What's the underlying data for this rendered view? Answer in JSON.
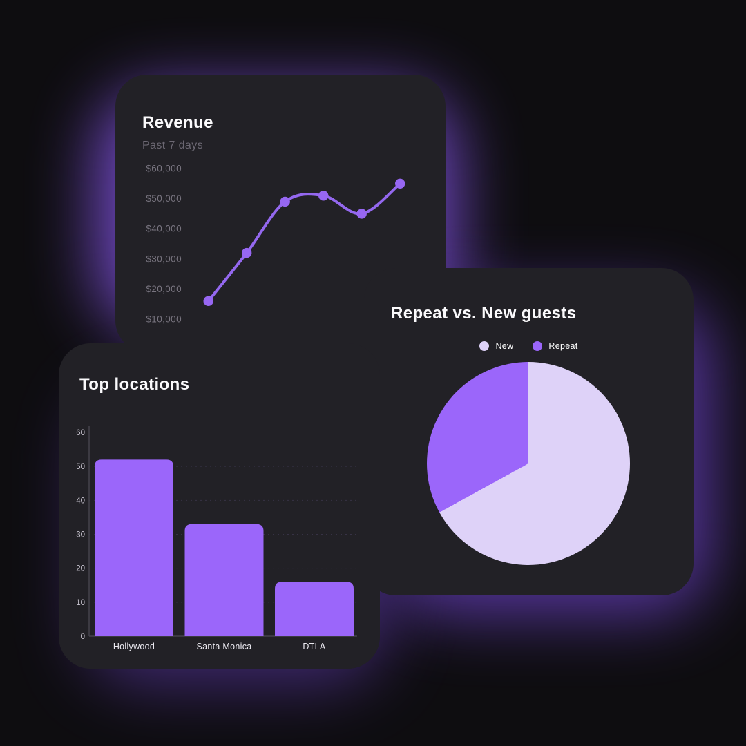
{
  "page": {
    "background": "#0e0d10",
    "card_background": "#222126",
    "glow_color": "#7b4fd6"
  },
  "chart_data": [
    {
      "id": "revenue-line",
      "type": "line",
      "title": "Revenue",
      "subtitle": "Past 7 days",
      "values": [
        16000,
        32000,
        49000,
        51000,
        45000,
        55000
      ],
      "y_ticks": [
        "$60,000",
        "$50,000",
        "$40,000",
        "$30,000",
        "$20,000",
        "$10,000"
      ],
      "ylim": [
        10000,
        60000
      ],
      "grid": false,
      "line_color": "#9468ef",
      "marker_color": "#9767f2"
    },
    {
      "id": "top-locations-bar",
      "type": "bar",
      "title": "Top locations",
      "categories": [
        "Hollywood",
        "Santa Monica",
        "DTLA"
      ],
      "values": [
        52,
        33,
        16
      ],
      "y_ticks": [
        0,
        10,
        20,
        30,
        40,
        50,
        60
      ],
      "ylim": [
        0,
        60
      ],
      "grid": true,
      "bar_color": "#9b66fa"
    },
    {
      "id": "repeat-vs-new-pie",
      "type": "pie",
      "title": "Repeat vs. New guests",
      "legend_position": "top",
      "start_angle_deg": 0,
      "slices": [
        {
          "label": "New",
          "value": 67,
          "color": "#ded2f8"
        },
        {
          "label": "Repeat",
          "value": 33,
          "color": "#9b66fa"
        }
      ]
    }
  ]
}
